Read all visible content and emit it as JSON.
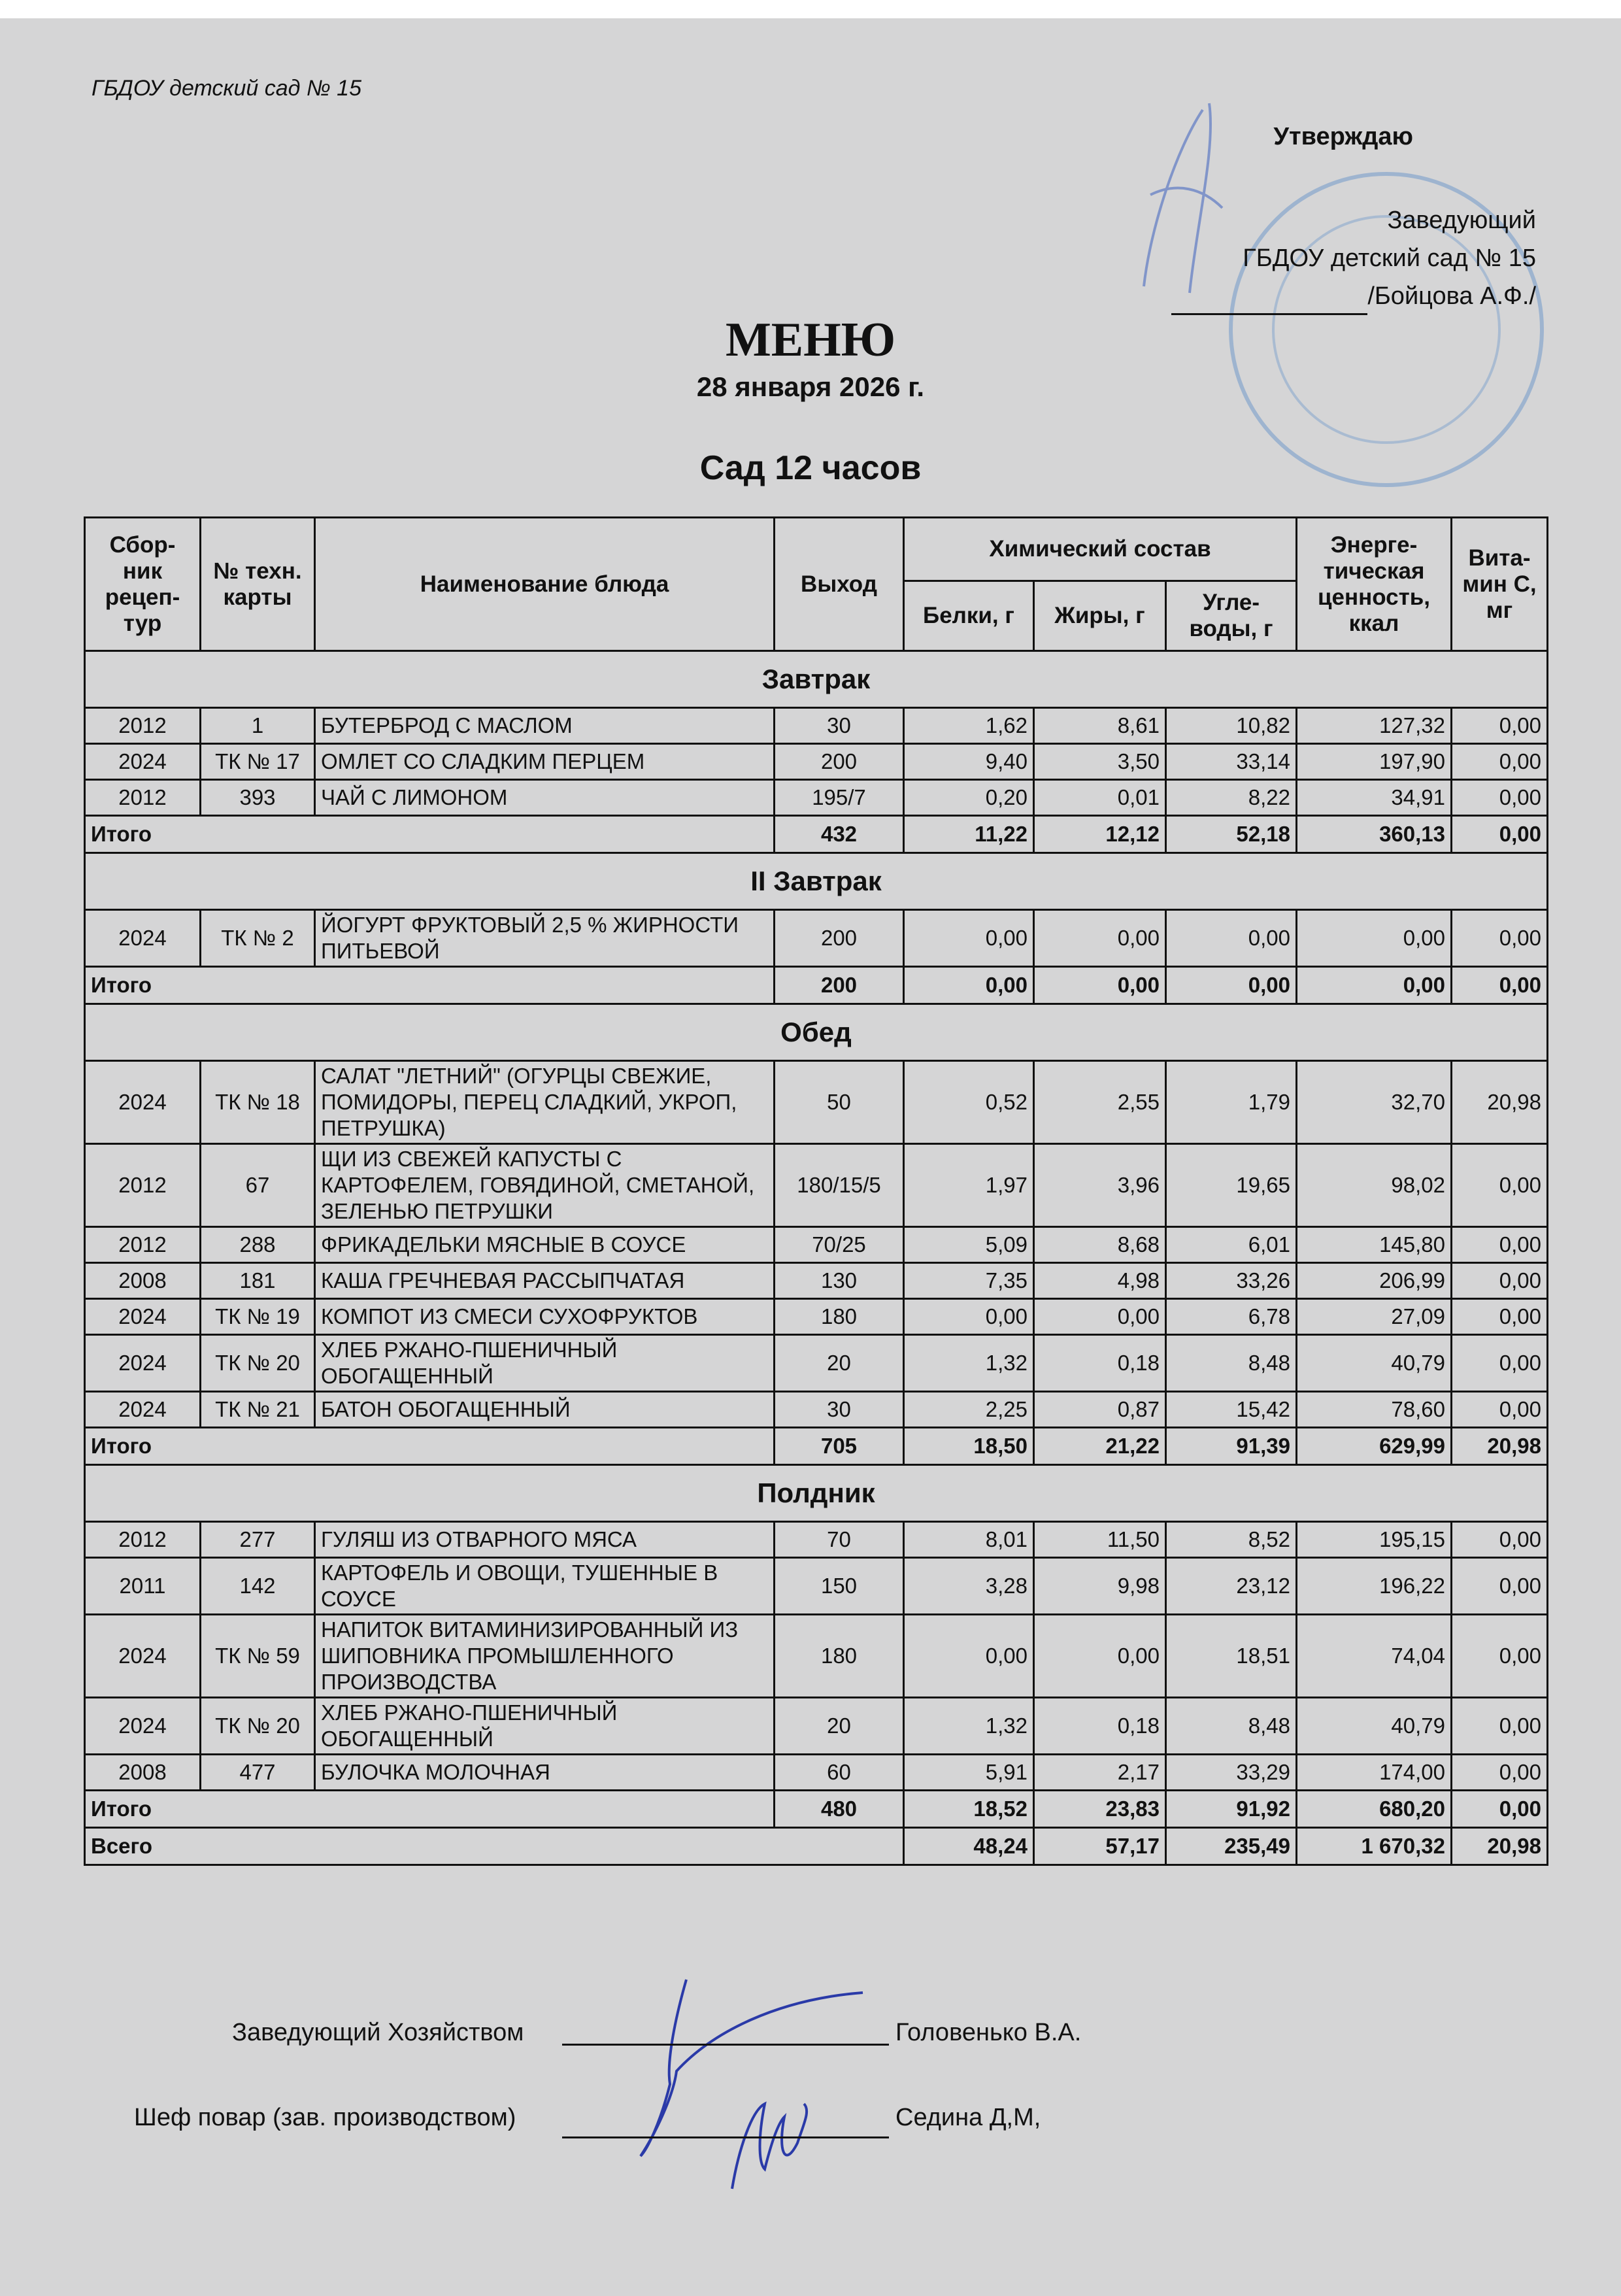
{
  "header": {
    "organization": "ГБДОУ детский сад № 15",
    "approve": "Утверждаю",
    "position": "Заведующий",
    "institution": "ГБДОУ детский сад № 15",
    "head_name": "/Бойцова А.Ф./"
  },
  "title": "МЕНЮ",
  "date": "28 января 2026 г.",
  "subtitle": "Сад 12 часов",
  "columns": {
    "collection": "Сбор-ник рецеп-тур",
    "tech_card": "№ техн. карты",
    "dish": "Наименование блюда",
    "output": "Выход",
    "chem": "Химический состав",
    "proteins": "Белки, г",
    "fats": "Жиры, г",
    "carbs": "Угле-воды, г",
    "energy": "Энерге-тическая ценность, ккал",
    "vitc": "Вита-мин С, мг"
  },
  "sections": [
    {
      "name": "Завтрак",
      "rows": [
        [
          "2012",
          "1",
          "БУТЕРБРОД С МАСЛОМ",
          "30",
          "1,62",
          "8,61",
          "10,82",
          "127,32",
          "0,00"
        ],
        [
          "2024",
          "ТК № 17",
          "ОМЛЕТ СО СЛАДКИМ ПЕРЦЕМ",
          "200",
          "9,40",
          "3,50",
          "33,14",
          "197,90",
          "0,00"
        ],
        [
          "2012",
          "393",
          "ЧАЙ С ЛИМОНОМ",
          "195/7",
          "0,20",
          "0,01",
          "8,22",
          "34,91",
          "0,00"
        ]
      ],
      "total": [
        "Итого",
        "432",
        "11,22",
        "12,12",
        "52,18",
        "360,13",
        "0,00"
      ]
    },
    {
      "name": "II Завтрак",
      "rows": [
        [
          "2024",
          "ТК № 2",
          "ЙОГУРТ ФРУКТОВЫЙ 2,5 % ЖИРНОСТИ  ПИТЬЕВОЙ",
          "200",
          "0,00",
          "0,00",
          "0,00",
          "0,00",
          "0,00"
        ]
      ],
      "total": [
        "Итого",
        "200",
        "0,00",
        "0,00",
        "0,00",
        "0,00",
        "0,00"
      ]
    },
    {
      "name": "Обед",
      "rows": [
        [
          "2024",
          "ТК № 18",
          "САЛАТ \"ЛЕТНИЙ\" (ОГУРЦЫ СВЕЖИЕ, ПОМИДОРЫ, ПЕРЕЦ СЛАДКИЙ, УКРОП, ПЕТРУШКА)",
          "50",
          "0,52",
          "2,55",
          "1,79",
          "32,70",
          "20,98"
        ],
        [
          "2012",
          "67",
          "ЩИ ИЗ СВЕЖЕЙ КАПУСТЫ С КАРТОФЕЛЕМ, ГОВЯДИНОЙ, СМЕТАНОЙ, ЗЕЛЕНЬЮ ПЕТРУШКИ",
          "180/15/5",
          "1,97",
          "3,96",
          "19,65",
          "98,02",
          "0,00"
        ],
        [
          "2012",
          "288",
          "ФРИКАДЕЛЬКИ МЯСНЫЕ В СОУСЕ",
          "70/25",
          "5,09",
          "8,68",
          "6,01",
          "145,80",
          "0,00"
        ],
        [
          "2008",
          "181",
          "КАША ГРЕЧНЕВАЯ РАССЫПЧАТАЯ",
          "130",
          "7,35",
          "4,98",
          "33,26",
          "206,99",
          "0,00"
        ],
        [
          "2024",
          "ТК № 19",
          "КОМПОТ ИЗ СМЕСИ СУХОФРУКТОВ",
          "180",
          "0,00",
          "0,00",
          "6,78",
          "27,09",
          "0,00"
        ],
        [
          "2024",
          "ТК № 20",
          "ХЛЕБ РЖАНО-ПШЕНИЧНЫЙ ОБОГАЩЕННЫЙ",
          "20",
          "1,32",
          "0,18",
          "8,48",
          "40,79",
          "0,00"
        ],
        [
          "2024",
          "ТК № 21",
          "БАТОН ОБОГАЩЕННЫЙ",
          "30",
          "2,25",
          "0,87",
          "15,42",
          "78,60",
          "0,00"
        ]
      ],
      "total": [
        "Итого",
        "705",
        "18,50",
        "21,22",
        "91,39",
        "629,99",
        "20,98"
      ]
    },
    {
      "name": "Полдник",
      "rows": [
        [
          "2012",
          "277",
          "ГУЛЯШ ИЗ ОТВАРНОГО МЯСА",
          "70",
          "8,01",
          "11,50",
          "8,52",
          "195,15",
          "0,00"
        ],
        [
          "2011",
          "142",
          "КАРТОФЕЛЬ И ОВОЩИ, ТУШЕННЫЕ В СОУСЕ",
          "150",
          "3,28",
          "9,98",
          "23,12",
          "196,22",
          "0,00"
        ],
        [
          "2024",
          "ТК № 59",
          "НАПИТОК ВИТАМИНИЗИРОВАННЫЙ ИЗ ШИПОВНИКА ПРОМЫШЛЕННОГО ПРОИЗВОДСТВА",
          "180",
          "0,00",
          "0,00",
          "18,51",
          "74,04",
          "0,00"
        ],
        [
          "2024",
          "ТК № 20",
          "ХЛЕБ РЖАНО-ПШЕНИЧНЫЙ ОБОГАЩЕННЫЙ",
          "20",
          "1,32",
          "0,18",
          "8,48",
          "40,79",
          "0,00"
        ],
        [
          "2008",
          "477",
          "БУЛОЧКА МОЛОЧНАЯ",
          "60",
          "5,91",
          "2,17",
          "33,29",
          "174,00",
          "0,00"
        ]
      ],
      "total": [
        "Итого",
        "480",
        "18,52",
        "23,83",
        "91,92",
        "680,20",
        "0,00"
      ]
    }
  ],
  "grand_total": [
    "Всего",
    "48,24",
    "57,17",
    "235,49",
    "1 670,32",
    "20,98"
  ],
  "footer": {
    "role1": "Заведующий Хозяйством",
    "name1": "Головенько В.А.",
    "role2": "Шеф повар (зав. производством)",
    "name2": "Седина Д,М,"
  },
  "colors": {
    "paper": "#d5d5d6",
    "ink": "#111111",
    "stamp": "#5a8cc8",
    "signature": "#2a3aa8"
  }
}
